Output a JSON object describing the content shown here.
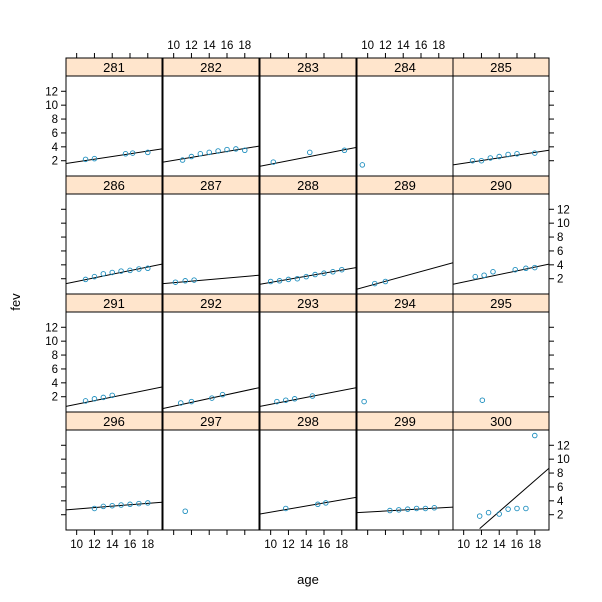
{
  "chart_data": {
    "type": "scatter",
    "title": "",
    "xlabel": "age",
    "ylabel": "fev",
    "xlim": [
      8.8,
      19.6
    ],
    "ylim": [
      -0.2,
      14.2
    ],
    "x_ticks": [
      10,
      12,
      14,
      16,
      18
    ],
    "y_ticks": [
      2,
      4,
      6,
      8,
      10,
      12
    ],
    "grid": false,
    "legend": "none",
    "colors": {
      "strip": "#ffe5cc",
      "point": "#1f8fbf",
      "line": "#000000"
    },
    "panels": [
      {
        "label": "281",
        "x": [
          11,
          12,
          15.5,
          16.3,
          18
        ],
        "y": [
          2.2,
          2.3,
          3.0,
          3.1,
          3.2
        ],
        "fit": [
          [
            8.8,
            1.6
          ],
          [
            19.6,
            3.7
          ]
        ]
      },
      {
        "label": "282",
        "x": [
          11,
          12,
          13,
          14,
          15,
          16,
          17,
          18
        ],
        "y": [
          2.1,
          2.6,
          3.0,
          3.2,
          3.4,
          3.6,
          3.7,
          3.5
        ],
        "fit": [
          [
            8.8,
            1.8
          ],
          [
            19.6,
            4.1
          ]
        ]
      },
      {
        "label": "283",
        "x": [
          10.3,
          14.4,
          18.3
        ],
        "y": [
          1.8,
          3.2,
          3.5
        ],
        "fit": [
          [
            8.8,
            1.2
          ],
          [
            19.6,
            3.9
          ]
        ]
      },
      {
        "label": "284",
        "x": [
          9.4
        ],
        "y": [
          1.4
        ],
        "fit": []
      },
      {
        "label": "285",
        "x": [
          11,
          12,
          13,
          14,
          15,
          16,
          18
        ],
        "y": [
          2.0,
          2.0,
          2.4,
          2.6,
          2.9,
          3.0,
          3.1
        ],
        "fit": [
          [
            8.8,
            1.4
          ],
          [
            19.6,
            3.5
          ]
        ]
      },
      {
        "label": "286",
        "x": [
          11,
          12,
          13,
          14,
          15,
          16,
          17,
          18
        ],
        "y": [
          1.9,
          2.3,
          2.7,
          2.9,
          3.1,
          3.2,
          3.4,
          3.5
        ],
        "fit": [
          [
            8.8,
            1.3
          ],
          [
            19.6,
            4.1
          ]
        ]
      },
      {
        "label": "287",
        "x": [
          10.2,
          11.3,
          12.3
        ],
        "y": [
          1.5,
          1.7,
          1.8
        ],
        "fit": [
          [
            8.8,
            1.3
          ],
          [
            19.6,
            2.5
          ]
        ]
      },
      {
        "label": "288",
        "x": [
          10,
          11,
          12,
          13,
          14,
          15,
          16,
          17,
          18
        ],
        "y": [
          1.6,
          1.7,
          1.9,
          2.0,
          2.3,
          2.6,
          2.8,
          3.0,
          3.3
        ],
        "fit": [
          [
            8.8,
            1.2
          ],
          [
            19.6,
            3.6
          ]
        ]
      },
      {
        "label": "289",
        "x": [
          10.8,
          12
        ],
        "y": [
          1.3,
          1.6
        ],
        "fit": [
          [
            8.8,
            0.5
          ],
          [
            19.6,
            4.3
          ]
        ]
      },
      {
        "label": "290",
        "x": [
          11.3,
          12.3,
          13.3,
          15.8,
          17,
          18
        ],
        "y": [
          2.3,
          2.5,
          3.0,
          3.3,
          3.5,
          3.6
        ],
        "fit": [
          [
            8.8,
            1.2
          ],
          [
            19.6,
            4.1
          ]
        ]
      },
      {
        "label": "291",
        "x": [
          11,
          12,
          13,
          14
        ],
        "y": [
          1.4,
          1.7,
          1.9,
          2.2
        ],
        "fit": [
          [
            8.8,
            0.6
          ],
          [
            19.6,
            3.4
          ]
        ]
      },
      {
        "label": "292",
        "x": [
          10.8,
          12,
          14.3,
          15.5
        ],
        "y": [
          1.1,
          1.3,
          1.8,
          2.3
        ],
        "fit": [
          [
            8.8,
            0.3
          ],
          [
            19.6,
            3.3
          ]
        ]
      },
      {
        "label": "293",
        "x": [
          10.7,
          11.7,
          12.7,
          14.7
        ],
        "y": [
          1.3,
          1.5,
          1.7,
          2.1
        ],
        "fit": [
          [
            8.8,
            0.6
          ],
          [
            19.6,
            3.3
          ]
        ]
      },
      {
        "label": "294",
        "x": [
          9.6
        ],
        "y": [
          1.3
        ],
        "fit": []
      },
      {
        "label": "295",
        "x": [
          12.1
        ],
        "y": [
          1.5
        ],
        "fit": []
      },
      {
        "label": "296",
        "x": [
          12,
          13,
          14,
          15,
          16,
          17,
          18
        ],
        "y": [
          2.9,
          3.2,
          3.3,
          3.4,
          3.5,
          3.6,
          3.7
        ],
        "fit": [
          [
            8.8,
            2.7
          ],
          [
            19.6,
            3.8
          ]
        ]
      },
      {
        "label": "297",
        "x": [
          11.3
        ],
        "y": [
          2.5
        ],
        "fit": []
      },
      {
        "label": "298",
        "x": [
          11.7,
          15.3,
          16.2
        ],
        "y": [
          2.9,
          3.5,
          3.7
        ],
        "fit": [
          [
            8.8,
            2.1
          ],
          [
            19.6,
            4.5
          ]
        ]
      },
      {
        "label": "299",
        "x": [
          12.5,
          13.5,
          14.5,
          15.5,
          16.5,
          17.5
        ],
        "y": [
          2.6,
          2.7,
          2.8,
          2.9,
          2.9,
          3.0
        ],
        "fit": [
          [
            8.8,
            2.3
          ],
          [
            19.6,
            3.1
          ]
        ]
      },
      {
        "label": "300",
        "x": [
          11.8,
          12.8,
          14,
          15,
          16,
          17,
          18
        ],
        "y": [
          1.8,
          2.3,
          2.1,
          2.8,
          2.9,
          2.9,
          13.4
        ],
        "fit": [
          [
            11.8,
            0.0
          ],
          [
            19.6,
            8.7
          ]
        ]
      }
    ]
  }
}
